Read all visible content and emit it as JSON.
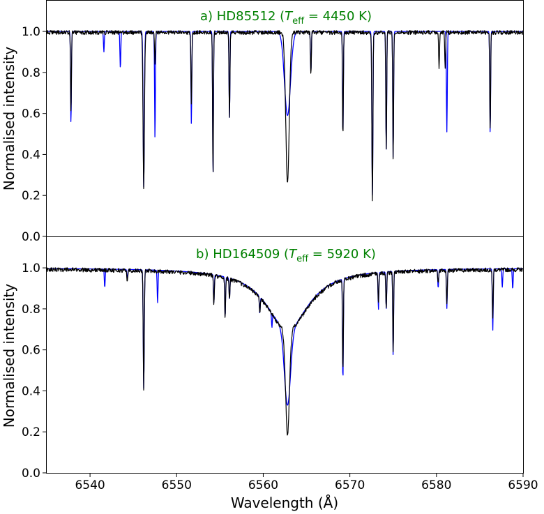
{
  "chart_data": [
    {
      "type": "line",
      "panel": "a",
      "title_prefix": "a) HD85512 (",
      "title_symbol": "T",
      "title_subscript": "eff",
      "title_suffix": " = 4450 K)",
      "title_color": "#008000",
      "xlabel": "",
      "ylabel": "Normalised intensity",
      "xlim": [
        6535,
        6590
      ],
      "ylim": [
        0.0,
        1.15
      ],
      "yticks": [
        "0.0",
        "0.2",
        "0.4",
        "0.6",
        "0.8",
        "1.0"
      ],
      "grid": false,
      "series": [
        {
          "color": "#0000ff",
          "continuum": 1.0,
          "lines": [
            {
              "x": 6537.8,
              "depth": 0.45,
              "width": 0.05
            },
            {
              "x": 6541.6,
              "depth": 0.1,
              "width": 0.05
            },
            {
              "x": 6543.5,
              "depth": 0.18,
              "width": 0.05
            },
            {
              "x": 6546.2,
              "depth": 0.76,
              "width": 0.07
            },
            {
              "x": 6547.5,
              "depth": 0.52,
              "width": 0.05
            },
            {
              "x": 6551.7,
              "depth": 0.45,
              "width": 0.05
            },
            {
              "x": 6554.2,
              "depth": 0.7,
              "width": 0.05
            },
            {
              "x": 6556.1,
              "depth": 0.42,
              "width": 0.05
            },
            {
              "x": 6562.8,
              "depth": 0.41,
              "width": 0.35
            },
            {
              "x": 6565.5,
              "depth": 0.2,
              "width": 0.05
            },
            {
              "x": 6569.2,
              "depth": 0.51,
              "width": 0.05
            },
            {
              "x": 6572.6,
              "depth": 0.8,
              "width": 0.06
            },
            {
              "x": 6574.2,
              "depth": 0.58,
              "width": 0.05
            },
            {
              "x": 6575.0,
              "depth": 0.62,
              "width": 0.05
            },
            {
              "x": 6581.2,
              "depth": 0.49,
              "width": 0.05
            },
            {
              "x": 6586.2,
              "depth": 0.5,
              "width": 0.05
            }
          ]
        },
        {
          "color": "#000000",
          "continuum": 0.995,
          "lines": [
            {
              "x": 6537.8,
              "depth": 0.4,
              "width": 0.05
            },
            {
              "x": 6546.2,
              "depth": 0.76,
              "width": 0.08
            },
            {
              "x": 6547.5,
              "depth": 0.15,
              "width": 0.05
            },
            {
              "x": 6551.7,
              "depth": 0.35,
              "width": 0.05
            },
            {
              "x": 6554.2,
              "depth": 0.7,
              "width": 0.05
            },
            {
              "x": 6556.1,
              "depth": 0.42,
              "width": 0.05
            },
            {
              "x": 6562.8,
              "depth": 0.74,
              "width": 0.2
            },
            {
              "x": 6565.5,
              "depth": 0.2,
              "width": 0.05
            },
            {
              "x": 6569.2,
              "depth": 0.51,
              "width": 0.05
            },
            {
              "x": 6572.6,
              "depth": 0.82,
              "width": 0.06
            },
            {
              "x": 6574.2,
              "depth": 0.58,
              "width": 0.05
            },
            {
              "x": 6575.0,
              "depth": 0.62,
              "width": 0.05
            },
            {
              "x": 6580.3,
              "depth": 0.18,
              "width": 0.05
            },
            {
              "x": 6581.0,
              "depth": 0.17,
              "width": 0.05
            },
            {
              "x": 6586.2,
              "depth": 0.48,
              "width": 0.05
            }
          ]
        }
      ]
    },
    {
      "type": "line",
      "panel": "b",
      "title_prefix": "b) HD164509 (",
      "title_symbol": "T",
      "title_subscript": "eff",
      "title_suffix": " = 5920 K)",
      "title_color": "#008000",
      "xlabel": "Wavelength (Å)",
      "ylabel": "Normalised intensity",
      "xlim": [
        6535,
        6590
      ],
      "ylim": [
        0.0,
        1.15
      ],
      "xticks": [
        "6540",
        "6550",
        "6560",
        "6570",
        "6580",
        "6590"
      ],
      "yticks": [
        "0.0",
        "0.2",
        "0.4",
        "0.6",
        "0.8",
        "1.0"
      ],
      "grid": false,
      "series": [
        {
          "color": "#0000ff",
          "continuum": 1.0,
          "broad": {
            "x": 6562.8,
            "depth": 0.67,
            "core_width": 0.35,
            "wing_depth": 0.3,
            "wing_width": 3.0
          },
          "lines": [
            {
              "x": 6541.7,
              "depth": 0.09,
              "width": 0.05
            },
            {
              "x": 6544.3,
              "depth": 0.05,
              "width": 0.05
            },
            {
              "x": 6546.2,
              "depth": 0.58,
              "width": 0.06
            },
            {
              "x": 6547.8,
              "depth": 0.16,
              "width": 0.05
            },
            {
              "x": 6554.3,
              "depth": 0.14,
              "width": 0.05
            },
            {
              "x": 6555.6,
              "depth": 0.2,
              "width": 0.05
            },
            {
              "x": 6556.1,
              "depth": 0.1,
              "width": 0.05
            },
            {
              "x": 6559.6,
              "depth": 0.08,
              "width": 0.05
            },
            {
              "x": 6561.0,
              "depth": 0.07,
              "width": 0.05
            },
            {
              "x": 6569.2,
              "depth": 0.5,
              "width": 0.05
            },
            {
              "x": 6573.3,
              "depth": 0.18,
              "width": 0.05
            },
            {
              "x": 6574.2,
              "depth": 0.18,
              "width": 0.05
            },
            {
              "x": 6575.0,
              "depth": 0.41,
              "width": 0.05
            },
            {
              "x": 6580.2,
              "depth": 0.09,
              "width": 0.05
            },
            {
              "x": 6581.2,
              "depth": 0.19,
              "width": 0.05
            },
            {
              "x": 6586.5,
              "depth": 0.3,
              "width": 0.05
            },
            {
              "x": 6587.6,
              "depth": 0.09,
              "width": 0.05
            },
            {
              "x": 6588.8,
              "depth": 0.1,
              "width": 0.05
            }
          ]
        },
        {
          "color": "#000000",
          "continuum": 0.995,
          "broad": {
            "x": 6562.8,
            "depth": 0.81,
            "core_width": 0.22,
            "wing_depth": 0.3,
            "wing_width": 3.0
          },
          "lines": [
            {
              "x": 6544.3,
              "depth": 0.05,
              "width": 0.05
            },
            {
              "x": 6546.2,
              "depth": 0.58,
              "width": 0.06
            },
            {
              "x": 6554.3,
              "depth": 0.14,
              "width": 0.05
            },
            {
              "x": 6555.6,
              "depth": 0.2,
              "width": 0.05
            },
            {
              "x": 6556.1,
              "depth": 0.1,
              "width": 0.05
            },
            {
              "x": 6559.6,
              "depth": 0.08,
              "width": 0.05
            },
            {
              "x": 6569.2,
              "depth": 0.45,
              "width": 0.05
            },
            {
              "x": 6573.3,
              "depth": 0.15,
              "width": 0.05
            },
            {
              "x": 6574.2,
              "depth": 0.18,
              "width": 0.05
            },
            {
              "x": 6575.0,
              "depth": 0.4,
              "width": 0.05
            },
            {
              "x": 6580.2,
              "depth": 0.06,
              "width": 0.05
            },
            {
              "x": 6581.2,
              "depth": 0.16,
              "width": 0.05
            },
            {
              "x": 6586.5,
              "depth": 0.24,
              "width": 0.05
            }
          ]
        }
      ]
    }
  ]
}
